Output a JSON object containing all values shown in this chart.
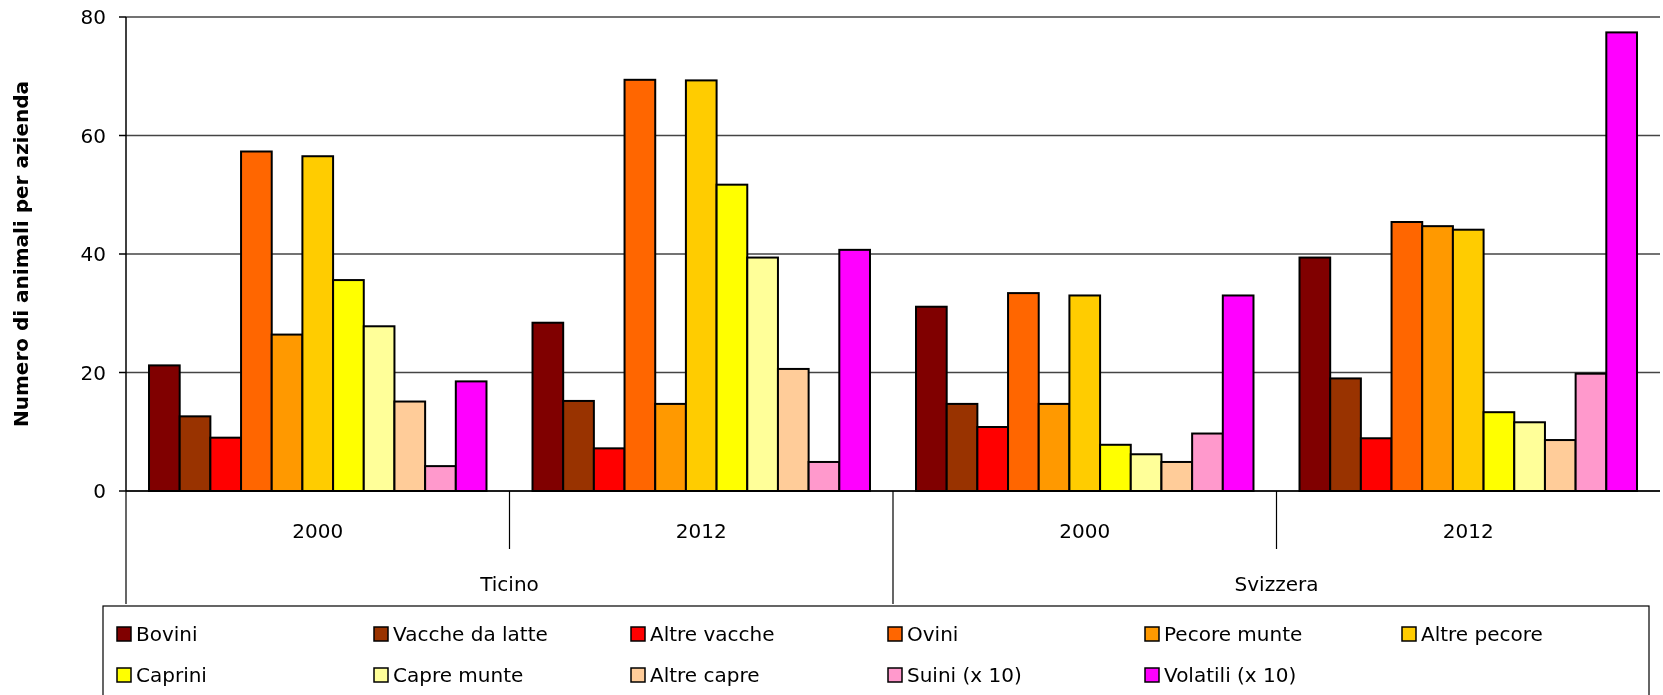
{
  "chart_data": {
    "type": "bar",
    "ylabel": "Numero di animali per azienda",
    "categories": [
      "2000",
      "2012",
      "2000",
      "2012"
    ],
    "annotations": [
      "Ticino",
      "Svizzera"
    ],
    "ylim": [
      0,
      80
    ],
    "yticks": [
      0,
      20,
      40,
      60,
      80
    ],
    "grid": "y",
    "legend": "bottom",
    "series": [
      {
        "name": "Bovini",
        "color": "#800000",
        "values": [
          21.2,
          28.4,
          31.1,
          39.4
        ]
      },
      {
        "name": "Vacche da latte",
        "color": "#993300",
        "values": [
          12.6,
          15.2,
          14.7,
          19.0
        ]
      },
      {
        "name": "Altre vacche",
        "color": "#ff0000",
        "values": [
          9.0,
          7.2,
          10.8,
          8.9
        ]
      },
      {
        "name": "Ovini",
        "color": "#ff6600",
        "values": [
          57.3,
          69.4,
          33.4,
          45.4
        ]
      },
      {
        "name": "Pecore munte",
        "color": "#ff9900",
        "values": [
          26.4,
          14.7,
          14.7,
          44.7
        ]
      },
      {
        "name": "Altre pecore",
        "color": "#ffcc00",
        "values": [
          56.5,
          69.3,
          33.0,
          44.1
        ]
      },
      {
        "name": "Caprini",
        "color": "#ffff00",
        "values": [
          35.6,
          51.7,
          7.8,
          13.3
        ]
      },
      {
        "name": "Capre munte",
        "color": "#ffff99",
        "values": [
          27.8,
          39.4,
          6.2,
          11.6
        ]
      },
      {
        "name": "Altre capre",
        "color": "#ffcc99",
        "values": [
          15.1,
          20.6,
          4.9,
          8.6
        ]
      },
      {
        "name": "Suini (x 10)",
        "color": "#ff99cc",
        "values": [
          4.2,
          4.9,
          9.7,
          19.8
        ]
      },
      {
        "name": "Volatili (x 10)",
        "color": "#ff00ff",
        "values": [
          18.5,
          40.7,
          33.0,
          77.4
        ]
      }
    ]
  }
}
